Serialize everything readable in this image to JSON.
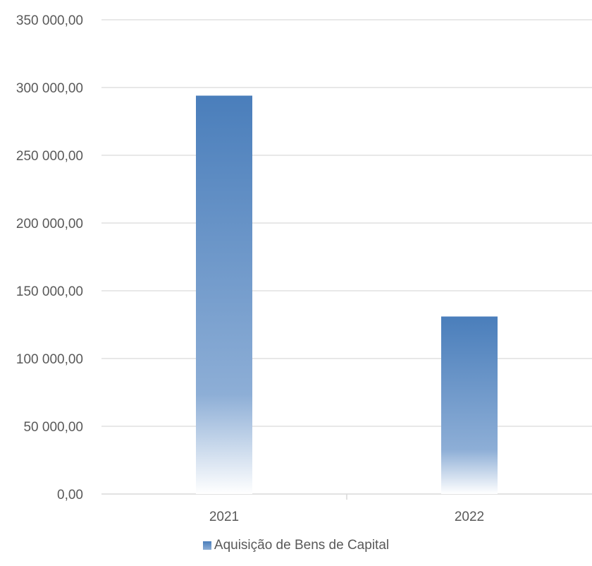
{
  "chart_data": {
    "type": "bar",
    "categories": [
      "2021",
      "2022"
    ],
    "series": [
      {
        "name": "Aquisição de Bens de Capital",
        "values": [
          294000,
          131000
        ]
      }
    ],
    "title": "",
    "xlabel": "",
    "ylabel": "",
    "ylim": [
      0,
      350000
    ],
    "yticks": [
      "0,00",
      "50 000,00",
      "100 000,00",
      "150 000,00",
      "200 000,00",
      "250 000,00",
      "300 000,00",
      "350 000,00"
    ],
    "grid": true,
    "legend_position": "bottom",
    "colors": {
      "bar_top": "#4a7ebb",
      "bar_bottom": "#ffffff",
      "grid": "#d9d9d9",
      "text": "#595959"
    }
  }
}
